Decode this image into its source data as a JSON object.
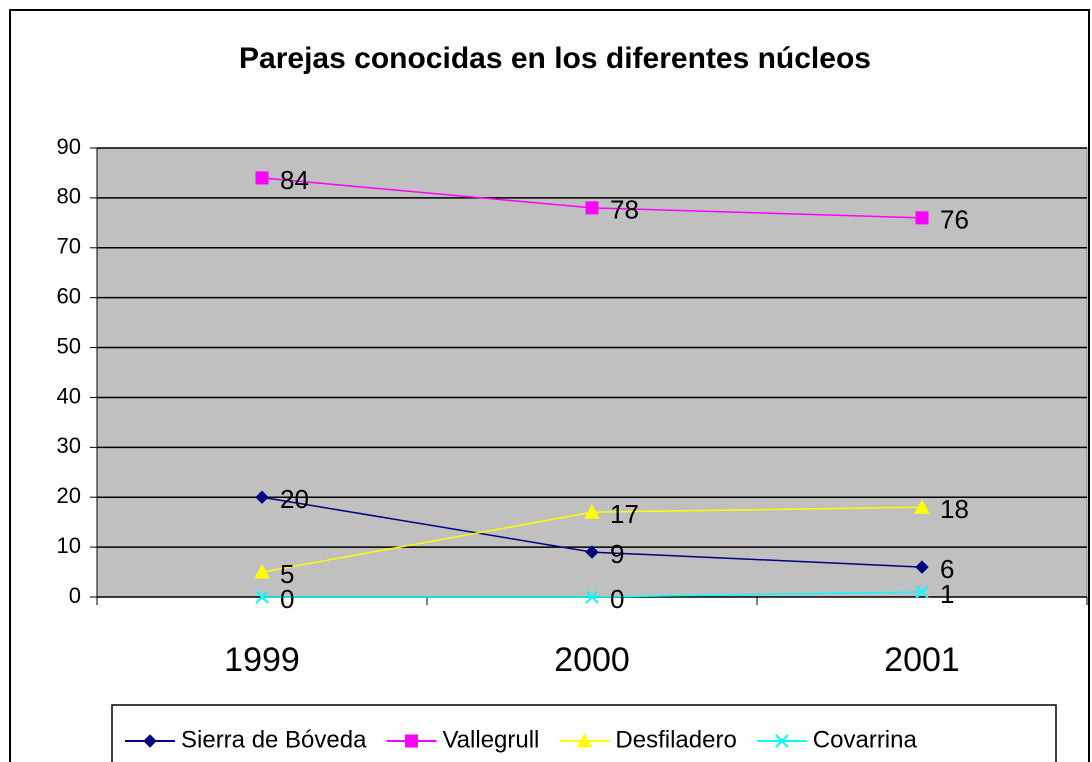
{
  "chart_data": {
    "type": "line",
    "title": "Parejas conocidas en los diferentes núcleos",
    "categories": [
      "1999",
      "2000",
      "2001"
    ],
    "series": [
      {
        "name": "Sierra de Bóveda",
        "color": "#000080",
        "marker": "diamond",
        "values": [
          20,
          9,
          6
        ]
      },
      {
        "name": "Vallegrull",
        "color": "#ff00ff",
        "marker": "square",
        "values": [
          84,
          78,
          76
        ]
      },
      {
        "name": "Desfiladero",
        "color": "#ffff00",
        "marker": "triangle",
        "values": [
          5,
          17,
          18
        ]
      },
      {
        "name": "Covarrina",
        "color": "#00ffff",
        "marker": "x",
        "values": [
          0,
          0,
          1
        ]
      }
    ],
    "ylim": [
      0,
      90
    ],
    "yticks": [
      0,
      10,
      20,
      30,
      40,
      50,
      60,
      70,
      80,
      90
    ],
    "grid": true,
    "plot_background": "#c0c0c0",
    "data_labels": true,
    "legend": "bottom"
  }
}
